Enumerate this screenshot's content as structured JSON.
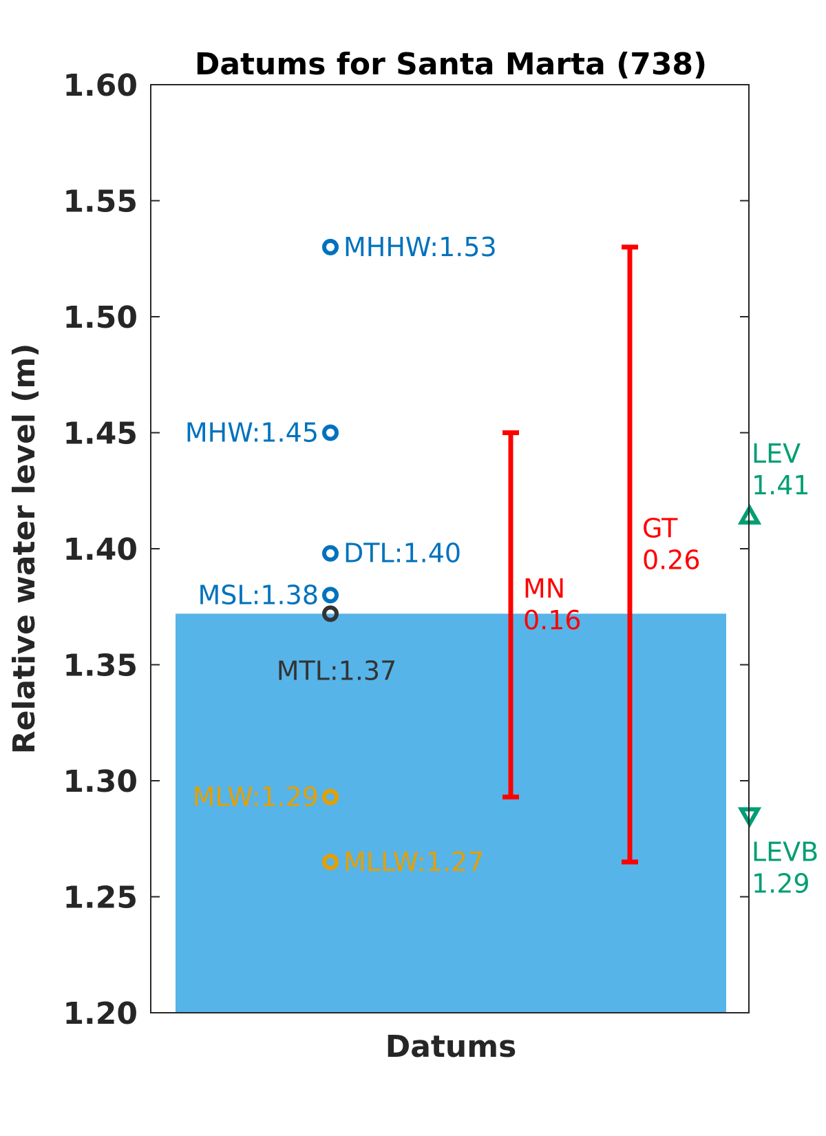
{
  "chart_data": {
    "type": "scatter",
    "title": "Datums for Santa Marta (738)",
    "xlabel": "Datums",
    "ylabel": "Relative water level (m)",
    "ylim": [
      1.2,
      1.6
    ],
    "yticks": [
      "1.20",
      "1.25",
      "1.30",
      "1.35",
      "1.40",
      "1.45",
      "1.50",
      "1.55",
      "1.60"
    ],
    "grid": false,
    "water_level_fill": {
      "value": 1.372,
      "color": "#56B4E9"
    },
    "datums": [
      {
        "name": "MHHW",
        "value": 1.53,
        "label": "MHHW:1.53",
        "color": "#0072BD",
        "label_side": "right"
      },
      {
        "name": "MHW",
        "value": 1.45,
        "label": "MHW:1.45",
        "color": "#0072BD",
        "label_side": "left"
      },
      {
        "name": "DTL",
        "value": 1.398,
        "label": "DTL:1.40",
        "color": "#0072BD",
        "label_side": "right"
      },
      {
        "name": "MSL",
        "value": 1.38,
        "label": "MSL:1.38",
        "color": "#0072BD",
        "label_side": "left"
      },
      {
        "name": "MTL",
        "value": 1.372,
        "label": "MTL:1.37",
        "color": "#333333",
        "label_side": "below"
      },
      {
        "name": "MLW",
        "value": 1.293,
        "label": "MLW:1.29",
        "color": "#E69F00",
        "label_side": "left"
      },
      {
        "name": "MLLW",
        "value": 1.265,
        "label": "MLLW:1.27",
        "color": "#E69F00",
        "label_side": "right"
      }
    ],
    "ranges": [
      {
        "name": "MN",
        "low": 1.293,
        "high": 1.45,
        "label_name": "MN",
        "label_value": "0.16",
        "color": "#FF0000"
      },
      {
        "name": "GT",
        "low": 1.265,
        "high": 1.53,
        "label_name": "GT",
        "label_value": "0.26",
        "color": "#FF0000"
      }
    ],
    "extremes": [
      {
        "name": "LEV",
        "value": 1.414,
        "label_name": "LEV",
        "label_value": "1.41",
        "marker": "triangle-up",
        "color": "#009E73"
      },
      {
        "name": "LEVB",
        "value": 1.285,
        "label_name": "LEVB",
        "label_value": "1.29",
        "marker": "triangle-down",
        "color": "#009E73"
      }
    ]
  }
}
